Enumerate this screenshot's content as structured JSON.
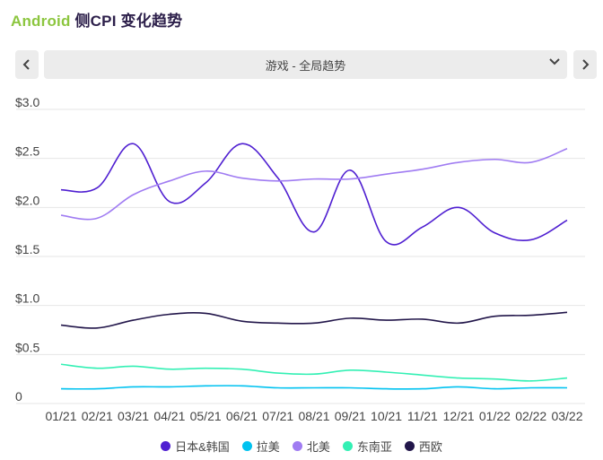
{
  "header": {
    "brand": "Android",
    "title_rest": " 侧CPI 变化趋势"
  },
  "selector": {
    "value": "游戏 - 全局趋势",
    "prev_icon": "chevron-left-icon",
    "next_icon": "chevron-right-icon",
    "dropdown_icon": "chevron-down-icon"
  },
  "chart_data": {
    "type": "line",
    "x": [
      "01/21",
      "02/21",
      "03/21",
      "04/21",
      "05/21",
      "06/21",
      "07/21",
      "08/21",
      "09/21",
      "10/21",
      "11/21",
      "12/21",
      "01/22",
      "02/22",
      "03/22"
    ],
    "y_ticks": [
      {
        "value": 0,
        "label": "0"
      },
      {
        "value": 0.5,
        "label": "$0.5"
      },
      {
        "value": 1.0,
        "label": "$1.0"
      },
      {
        "value": 1.5,
        "label": "$1.5"
      },
      {
        "value": 2.0,
        "label": "$2.0"
      },
      {
        "value": 2.5,
        "label": "$2.5"
      },
      {
        "value": 3.0,
        "label": "$3.0"
      }
    ],
    "ylim": [
      0,
      3.0
    ],
    "grid": true,
    "legend_position": "bottom",
    "series": [
      {
        "name": "日本&韩国",
        "color": "#4f1fd1",
        "values": [
          2.18,
          2.2,
          2.65,
          2.06,
          2.25,
          2.65,
          2.3,
          1.75,
          2.38,
          1.65,
          1.8,
          2.0,
          1.74,
          1.67,
          1.87
        ]
      },
      {
        "name": "拉美",
        "color": "#00c2f0",
        "values": [
          0.15,
          0.15,
          0.17,
          0.17,
          0.18,
          0.18,
          0.16,
          0.16,
          0.16,
          0.15,
          0.15,
          0.17,
          0.15,
          0.16,
          0.16
        ]
      },
      {
        "name": "北美",
        "color": "#a07cf2",
        "values": [
          1.92,
          1.89,
          2.13,
          2.27,
          2.37,
          2.3,
          2.27,
          2.29,
          2.29,
          2.34,
          2.39,
          2.46,
          2.49,
          2.46,
          2.6
        ]
      },
      {
        "name": "东南亚",
        "color": "#33f0b4",
        "values": [
          0.4,
          0.36,
          0.38,
          0.35,
          0.36,
          0.35,
          0.31,
          0.3,
          0.34,
          0.32,
          0.29,
          0.26,
          0.25,
          0.23,
          0.26
        ]
      },
      {
        "name": "西欧",
        "color": "#22164a",
        "values": [
          0.8,
          0.77,
          0.85,
          0.91,
          0.92,
          0.84,
          0.82,
          0.82,
          0.87,
          0.85,
          0.86,
          0.82,
          0.89,
          0.9,
          0.93
        ]
      }
    ]
  }
}
